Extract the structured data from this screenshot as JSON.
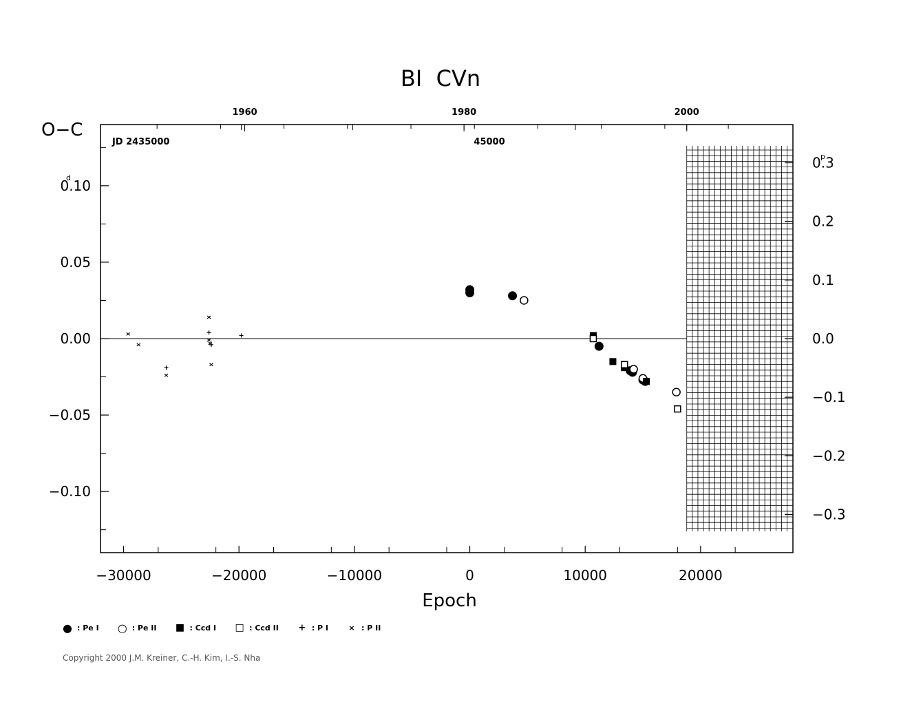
{
  "chart_data": {
    "type": "scatter",
    "title": "BI  CVn",
    "xlabel": "Epoch",
    "ylabel": "O−C",
    "ylabel_unit_top": "0.10",
    "y_unit_superscript": "d",
    "right_unit_superscript": "p",
    "xlim": [
      -32000,
      28000
    ],
    "ylim": [
      -0.14,
      0.14
    ],
    "x_ticks": [
      -30000,
      -20000,
      -10000,
      0,
      10000,
      20000
    ],
    "x_tick_labels": [
      "−30000",
      "−20000",
      "−10000",
      "0",
      "10000",
      "20000"
    ],
    "y_ticks": [
      -0.1,
      -0.05,
      0.0,
      0.05,
      0.1
    ],
    "y_tick_labels": [
      "−0.10",
      "−0.05",
      "0.00",
      "0.05",
      "0.10"
    ],
    "right_axis_ticks": [
      -0.3,
      -0.2,
      -0.1,
      0.0,
      0.1,
      0.2,
      0.3
    ],
    "right_axis_labels": [
      "−0.3",
      "−0.2",
      "−0.1",
      "0.0",
      "0.1",
      "0.2",
      "0.3"
    ],
    "right_axis_scale": 0.3833,
    "top_axis_years": [
      {
        "year": "1960",
        "epoch": -19500
      },
      {
        "year": "1980",
        "epoch": -500
      },
      {
        "year": "2000",
        "epoch": 18800
      }
    ],
    "top_axis_jd": [
      {
        "label": "JD  2435000",
        "epoch": -28500
      },
      {
        "label": "45000",
        "epoch": 1700
      }
    ],
    "grid_region_epoch": [
      18800,
      28000
    ],
    "grid": false,
    "legend_placement": "bottom",
    "series": [
      {
        "name": "Pe I",
        "symbol": "filled-circle",
        "points": [
          [
            0,
            0.032
          ],
          [
            0,
            0.03
          ],
          [
            3700,
            0.028
          ],
          [
            11200,
            -0.005
          ],
          [
            13900,
            -0.021
          ],
          [
            14100,
            -0.022
          ],
          [
            15000,
            -0.027
          ],
          [
            15200,
            -0.028
          ]
        ]
      },
      {
        "name": "Pe II",
        "symbol": "open-circle",
        "points": [
          [
            4700,
            0.025
          ],
          [
            14200,
            -0.02
          ],
          [
            15000,
            -0.026
          ],
          [
            17900,
            -0.035
          ]
        ]
      },
      {
        "name": "Ccd I",
        "symbol": "filled-square",
        "points": [
          [
            10700,
            0.002
          ],
          [
            12400,
            -0.015
          ],
          [
            13400,
            -0.019
          ],
          [
            15300,
            -0.028
          ]
        ]
      },
      {
        "name": "Ccd II",
        "symbol": "open-square",
        "points": [
          [
            10700,
            0.0
          ],
          [
            13400,
            -0.017
          ],
          [
            18000,
            -0.046
          ]
        ]
      },
      {
        "name": "P I",
        "symbol": "plus",
        "points": [
          [
            -26300,
            -0.019
          ],
          [
            -22600,
            0.004
          ],
          [
            -22400,
            -0.004
          ],
          [
            -19800,
            0.002
          ]
        ]
      },
      {
        "name": "P II",
        "symbol": "cross",
        "points": [
          [
            -29600,
            0.003
          ],
          [
            -28700,
            -0.004
          ],
          [
            -26300,
            -0.024
          ],
          [
            -22600,
            0.014
          ],
          [
            -22600,
            -0.001
          ],
          [
            -22500,
            -0.003
          ],
          [
            -22400,
            -0.017
          ]
        ]
      }
    ]
  },
  "legend": [
    {
      "label": ": Pe I",
      "symbol": "●"
    },
    {
      "label": ": Pe II",
      "symbol": "○"
    },
    {
      "label": ": Ccd I",
      "symbol": "■"
    },
    {
      "label": ": Ccd II",
      "symbol": "□"
    },
    {
      "label": ": P I",
      "symbol": "+"
    },
    {
      "label": ": P II",
      "symbol": "×"
    }
  ],
  "copyright": "Copyright 2000 J.M. Kreiner, C.-H. Kim, I.-S. Nha"
}
